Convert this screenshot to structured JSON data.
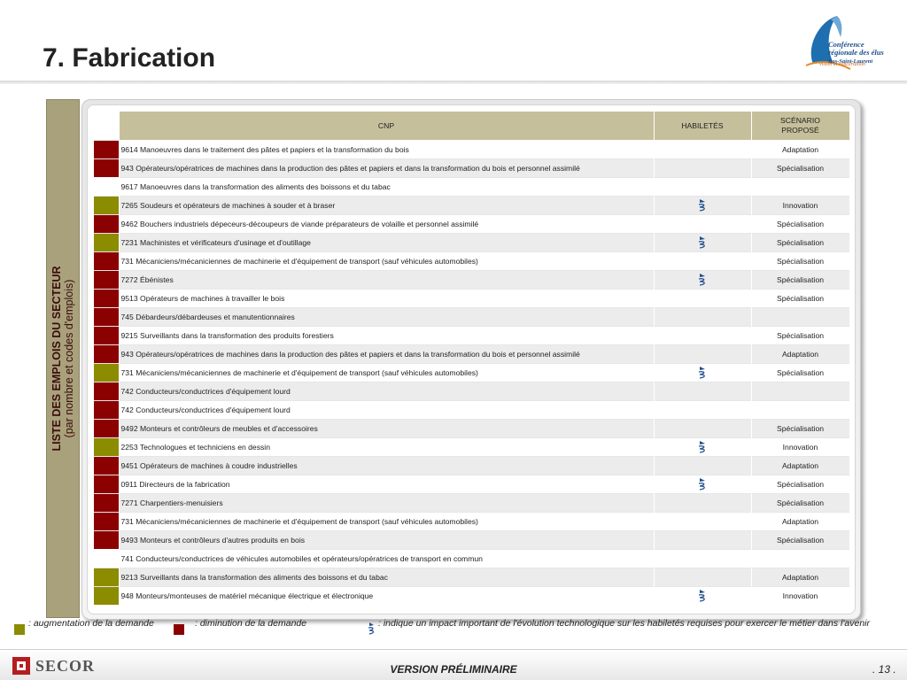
{
  "header": {
    "title": "7. Fabrication"
  },
  "logo": {
    "line1": "Conférence",
    "line2": "régionale des élus",
    "line3": "Bas-Saint-Laurent",
    "tagline": "vision et concertation"
  },
  "sidebar": {
    "title": "LISTE DES EMPLOIS DU SECTEUR",
    "subtitle": "(par nombre et codes d'emplois)"
  },
  "table": {
    "headers": {
      "cnp": "CNP",
      "skills": "HABILETÉS",
      "scenario_l1": "SCÉNARIO",
      "scenario_l2": "PROPOSÉ"
    },
    "tech_icon": "tech-impact-icon",
    "rows": [
      {
        "indicator": "r",
        "cnp": "9614 Manoeuvres dans le traitement des pâtes et papiers et la transformation du bois",
        "tech": false,
        "scenario": "Adaptation"
      },
      {
        "indicator": "r",
        "cnp": "943 Opérateurs/opératrices de machines dans la production des pâtes et papiers et dans la transformation du bois et personnel assimilé",
        "tech": false,
        "scenario": "Spécialisation"
      },
      {
        "indicator": "w",
        "cnp": "9617 Manoeuvres dans la transformation des aliments des boissons et du tabac",
        "tech": false,
        "scenario": ""
      },
      {
        "indicator": "g",
        "cnp": "7265 Soudeurs et opérateurs de machines à souder et à braser",
        "tech": true,
        "scenario": "Innovation"
      },
      {
        "indicator": "r",
        "cnp": "9462 Bouchers industriels dépeceurs-découpeurs de viande préparateurs de volaille et personnel assimilé",
        "tech": false,
        "scenario": "Spécialisation"
      },
      {
        "indicator": "g",
        "cnp": "7231 Machinistes et vérificateurs d'usinage et d'outillage",
        "tech": true,
        "scenario": "Spécialisation"
      },
      {
        "indicator": "r",
        "cnp": "731 Mécaniciens/mécaniciennes de machinerie et d'équipement de transport (sauf véhicules automobiles)",
        "tech": false,
        "scenario": "Spécialisation"
      },
      {
        "indicator": "r",
        "cnp": "7272 Ébénistes",
        "tech": true,
        "scenario": "Spécialisation"
      },
      {
        "indicator": "r",
        "cnp": "9513 Opérateurs de machines à travailler le bois",
        "tech": false,
        "scenario": "Spécialisation"
      },
      {
        "indicator": "r",
        "cnp": "745 Débardeurs/débardeuses et manutentionnaires",
        "tech": false,
        "scenario": ""
      },
      {
        "indicator": "r",
        "cnp": "9215 Surveillants dans la transformation des produits forestiers",
        "tech": false,
        "scenario": "Spécialisation"
      },
      {
        "indicator": "r",
        "cnp": "943 Opérateurs/opératrices de machines dans la production des pâtes et papiers et dans la transformation du bois et personnel assimilé",
        "tech": false,
        "scenario": "Adaptation"
      },
      {
        "indicator": "g",
        "cnp": "731 Mécaniciens/mécaniciennes de machinerie et d'équipement de transport (sauf véhicules automobiles)",
        "tech": true,
        "scenario": "Spécialisation"
      },
      {
        "indicator": "r",
        "cnp": "742 Conducteurs/conductrices d'équipement lourd",
        "tech": false,
        "scenario": ""
      },
      {
        "indicator": "r",
        "cnp": "742 Conducteurs/conductrices d'équipement lourd",
        "tech": false,
        "scenario": ""
      },
      {
        "indicator": "r",
        "cnp": "9492 Monteurs et contrôleurs de meubles et d'accessoires",
        "tech": false,
        "scenario": "Spécialisation"
      },
      {
        "indicator": "g",
        "cnp": "2253 Technologues et techniciens en dessin",
        "tech": true,
        "scenario": "Innovation"
      },
      {
        "indicator": "r",
        "cnp": "9451 Opérateurs de machines à coudre industrielles",
        "tech": false,
        "scenario": "Adaptation"
      },
      {
        "indicator": "r",
        "cnp": "0911 Directeurs de la fabrication",
        "tech": true,
        "scenario": "Spécialisation"
      },
      {
        "indicator": "r",
        "cnp": "7271 Charpentiers-menuisiers",
        "tech": false,
        "scenario": "Spécialisation"
      },
      {
        "indicator": "r",
        "cnp": "731 Mécaniciens/mécaniciennes de machinerie et d'équipement de transport (sauf véhicules automobiles)",
        "tech": false,
        "scenario": "Adaptation"
      },
      {
        "indicator": "r",
        "cnp": "9493 Monteurs et contrôleurs d'autres produits en bois",
        "tech": false,
        "scenario": "Spécialisation"
      },
      {
        "indicator": "w",
        "cnp": "741 Conducteurs/conductrices de véhicules automobiles et opérateurs/opératrices de transport en commun",
        "tech": false,
        "scenario": ""
      },
      {
        "indicator": "g",
        "cnp": "9213 Surveillants dans la transformation des aliments des boissons et du tabac",
        "tech": false,
        "scenario": "Adaptation"
      },
      {
        "indicator": "g",
        "cnp": "948 Monteurs/monteuses de matériel mécanique électrique et électronique",
        "tech": true,
        "scenario": "Innovation"
      }
    ]
  },
  "legend": {
    "increase": ": augmentation de la demande",
    "decrease": ": diminution de la demande",
    "tech": ": indique un impact important de l'évolution technologique sur les habiletés requises pour exercer le métier dans l'avenir"
  },
  "colors": {
    "increase": "#8b8c00",
    "decrease": "#8b0000",
    "header": "#c6bf9b",
    "sidebar": "#a9a17b"
  },
  "footer": {
    "brand": "SECOR",
    "version": "VERSION PRÉLIMINAIRE",
    "page": ". 13 ."
  }
}
